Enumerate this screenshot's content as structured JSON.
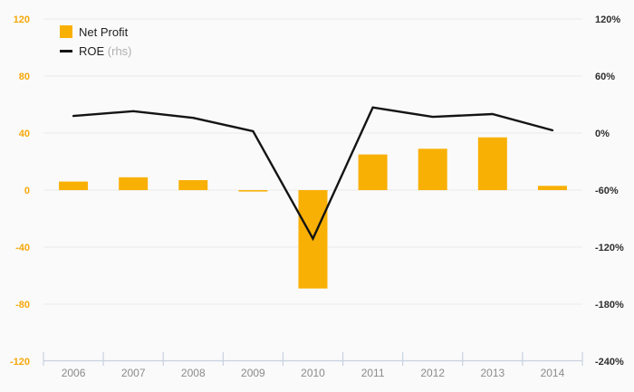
{
  "legend": {
    "net_profit_label": "Net Profit",
    "roe_label": "ROE",
    "roe_suffix": "(rhs)"
  },
  "chart_data": {
    "type": "combo_bar_line",
    "categories": [
      "2006",
      "2007",
      "2008",
      "2009",
      "2010",
      "2011",
      "2012",
      "2013",
      "2014"
    ],
    "series": [
      {
        "name": "Net Profit",
        "type": "bar",
        "axis": "left",
        "values": [
          6,
          9,
          7,
          -1,
          -69,
          25,
          29,
          37,
          3
        ]
      },
      {
        "name": "ROE",
        "type": "line",
        "axis": "right",
        "unit": "%",
        "values": [
          18,
          23,
          16,
          2,
          -111,
          27,
          17,
          20,
          3
        ]
      }
    ],
    "left_axis": {
      "ticks": [
        120,
        80,
        40,
        0,
        -40,
        -80,
        -120
      ],
      "range": [
        -120,
        120
      ]
    },
    "right_axis": {
      "tick_labels": [
        "120%",
        "60%",
        "0%",
        "-60%",
        "-120%",
        "-180%",
        "-240%"
      ],
      "range": [
        -240,
        120
      ]
    },
    "grid": true,
    "legend_position": "top-left"
  },
  "colors": {
    "bar": "#F9B005",
    "line": "#141414",
    "left_tick_label": "#F7A80A",
    "right_tick_label": "#2E2E2E",
    "year_label": "#8B8B8B",
    "gridline": "#E9E9E9",
    "axis": "#C8D1E0",
    "background": "#FAFAFA"
  }
}
